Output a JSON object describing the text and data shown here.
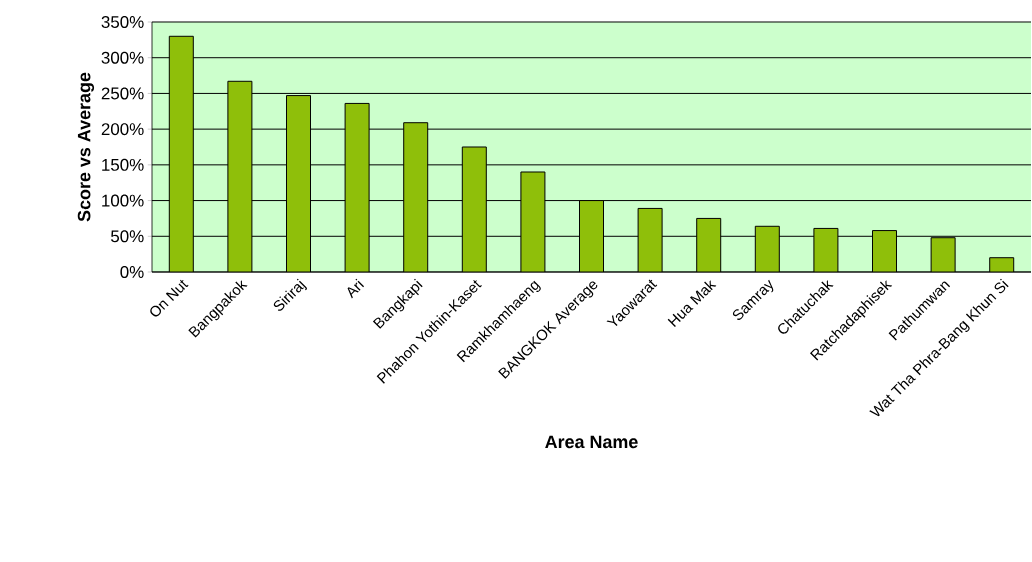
{
  "chart_data": {
    "type": "bar",
    "xlabel": "Area Name",
    "ylabel": "Score vs Average",
    "categories": [
      "On Nut",
      "Bangpakok",
      "Siriraj",
      "Ari",
      "Bangkapi",
      "Phahon Yothin-Kaset",
      "Ramkhamhaeng",
      "BANGKOK Average",
      "Yaowarat",
      "Hua Mak",
      "Samray",
      "Chatuchak",
      "Ratchadaphisek",
      "Pathumwan",
      "Wat Tha Phra-Bang Khun Si"
    ],
    "values": [
      330,
      267,
      247,
      236,
      209,
      175,
      140,
      100,
      89,
      75,
      64,
      61,
      58,
      48,
      20
    ],
    "color": "#8fbf0a",
    "ylim": [
      0,
      350
    ],
    "yticks": [
      {
        "value": 0,
        "label": "0%"
      },
      {
        "value": 50,
        "label": "50%"
      },
      {
        "value": 100,
        "label": "100%"
      },
      {
        "value": 150,
        "label": "150%"
      },
      {
        "value": 200,
        "label": "200%"
      },
      {
        "value": 250,
        "label": "250%"
      },
      {
        "value": 300,
        "label": "300%"
      },
      {
        "value": 350,
        "label": "350%"
      }
    ],
    "grid": "y"
  }
}
